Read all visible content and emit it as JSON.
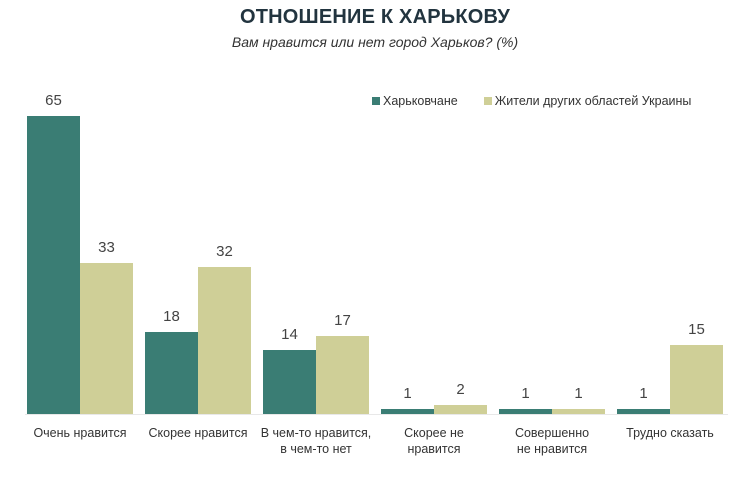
{
  "header": {
    "title": "ОТНОШЕНИЕ К ХАРЬКОВУ",
    "subtitle": "Вам нравится или нет город Харьков? (%)"
  },
  "legend": [
    {
      "label": "Харьковчане",
      "color": "#3a7d74"
    },
    {
      "label": "Жители других областей Украины",
      "color": "#cfcf97"
    }
  ],
  "chart_data": {
    "type": "bar",
    "title": "ОТНОШЕНИЕ К ХАРЬКОВУ",
    "subtitle": "Вам нравится или нет город Харьков? (%)",
    "xlabel": "",
    "ylabel": "",
    "ylim": [
      0,
      70
    ],
    "grid": false,
    "legend_position": "top-right",
    "categories": [
      "Очень нравится",
      "Скорее нравится",
      "В чем-то нравится, в чем-то нет",
      "Скорее не нравится",
      "Совершенно не нравится",
      "Трудно сказать"
    ],
    "series": [
      {
        "name": "Харьковчане",
        "color": "#3a7d74",
        "values": [
          65,
          18,
          14,
          1,
          1,
          1
        ]
      },
      {
        "name": "Жители других областей Украины",
        "color": "#cfcf97",
        "values": [
          33,
          32,
          17,
          2,
          1,
          15
        ]
      }
    ]
  },
  "category_lines": [
    [
      "Очень нравится"
    ],
    [
      "Скорее нравится"
    ],
    [
      "В чем-то нравится,",
      "в чем-то нет"
    ],
    [
      "Скорее не",
      "нравится"
    ],
    [
      "Совершенно",
      "не нравится"
    ],
    [
      "Трудно сказать"
    ]
  ]
}
